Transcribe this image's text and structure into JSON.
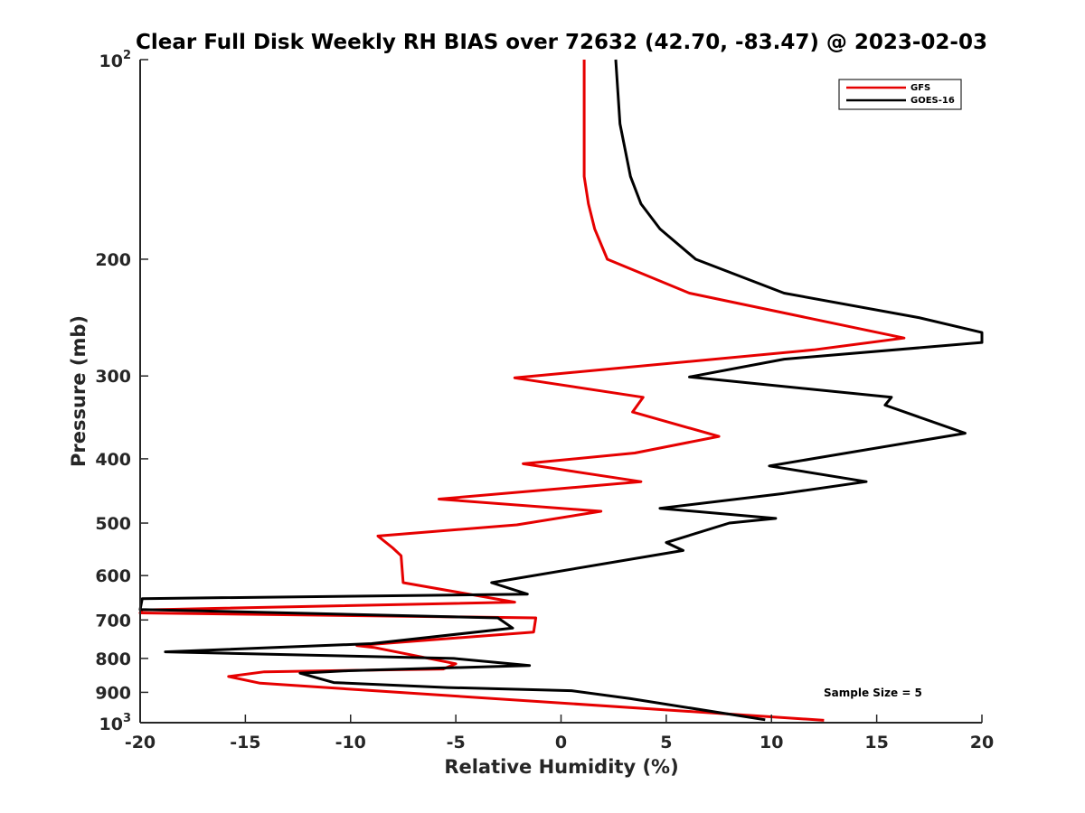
{
  "chart_data": {
    "type": "line",
    "title": "Clear Full Disk Weekly RH BIAS over 72632 (42.70, -83.47) @ 2023-02-03",
    "xlabel": "Relative Humidity (%)",
    "ylabel": "Pressure (mb)",
    "xlim": [
      -20,
      20
    ],
    "ylim": [
      100,
      1000
    ],
    "yscale": "log",
    "y_reversed": true,
    "grid": false,
    "legend_position": "top-right",
    "x_ticks": [
      -20,
      -15,
      -10,
      -5,
      0,
      5,
      10,
      15,
      20
    ],
    "x_tick_labels": [
      "-20",
      "-15",
      "-10",
      "-5",
      "0",
      "5",
      "10",
      "15",
      "20"
    ],
    "y_ticks": [
      200,
      300,
      400,
      500,
      600,
      700,
      800,
      900
    ],
    "y_tick_labels": [
      "200",
      "300",
      "400",
      "500",
      "600",
      "700",
      "800",
      "900"
    ],
    "y_limit_labels": [
      {
        "base": "10",
        "exponent": "2",
        "value": 100
      },
      {
        "base": "10",
        "exponent": "3",
        "value": 1000
      }
    ],
    "annotations": [
      "Sample Size = 5"
    ],
    "series": [
      {
        "name": "GFS",
        "color": "#e60000",
        "points": [
          [
            1.1,
            100
          ],
          [
            1.1,
            125
          ],
          [
            1.1,
            150
          ],
          [
            1.3,
            165
          ],
          [
            1.6,
            180
          ],
          [
            2.2,
            200
          ],
          [
            6.1,
            225
          ],
          [
            16.3,
            263
          ],
          [
            12.0,
            274
          ],
          [
            -2.2,
            302
          ],
          [
            3.9,
            323
          ],
          [
            3.4,
            340
          ],
          [
            7.5,
            370
          ],
          [
            3.5,
            392
          ],
          [
            -1.8,
            407
          ],
          [
            3.8,
            433
          ],
          [
            -5.8,
            460
          ],
          [
            1.9,
            480
          ],
          [
            -2.1,
            503
          ],
          [
            -8.7,
            523
          ],
          [
            -8.0,
            545
          ],
          [
            -7.6,
            560
          ],
          [
            -7.5,
            615
          ],
          [
            -2.2,
            658
          ],
          [
            -19.9,
            676
          ],
          [
            -20.0,
            683
          ],
          [
            -1.2,
            695
          ],
          [
            -1.3,
            730
          ],
          [
            -9.7,
            765
          ],
          [
            -8.9,
            770
          ],
          [
            -5.0,
            815
          ],
          [
            -5.6,
            830
          ],
          [
            -14.1,
            838
          ],
          [
            -15.8,
            852
          ],
          [
            -14.3,
            872
          ],
          [
            12.5,
            992
          ]
        ]
      },
      {
        "name": "GOES-16",
        "color": "#000000",
        "points": [
          [
            2.6,
            100
          ],
          [
            2.8,
            125
          ],
          [
            3.3,
            150
          ],
          [
            3.8,
            165
          ],
          [
            4.7,
            180
          ],
          [
            6.4,
            200
          ],
          [
            10.6,
            225
          ],
          [
            17.0,
            245
          ],
          [
            20.0,
            258
          ],
          [
            20.0,
            267
          ],
          [
            10.6,
            283
          ],
          [
            6.1,
            301
          ],
          [
            15.7,
            323
          ],
          [
            15.4,
            332
          ],
          [
            19.2,
            366
          ],
          [
            9.9,
            410
          ],
          [
            14.5,
            433
          ],
          [
            10.6,
            451
          ],
          [
            4.7,
            475
          ],
          [
            10.2,
            492
          ],
          [
            8.0,
            500
          ],
          [
            5.0,
            535
          ],
          [
            5.8,
            550
          ],
          [
            -3.3,
            615
          ],
          [
            -1.6,
            640
          ],
          [
            -19.9,
            650
          ],
          [
            -20.0,
            675
          ],
          [
            -3.0,
            695
          ],
          [
            -2.3,
            720
          ],
          [
            -9.0,
            760
          ],
          [
            -18.8,
            782
          ],
          [
            -5.1,
            800
          ],
          [
            -1.5,
            820
          ],
          [
            -10.1,
            835
          ],
          [
            -12.4,
            842
          ],
          [
            -10.8,
            870
          ],
          [
            -5.4,
            885
          ],
          [
            0.5,
            895
          ],
          [
            3.3,
            920
          ],
          [
            9.7,
            990
          ]
        ]
      }
    ]
  }
}
